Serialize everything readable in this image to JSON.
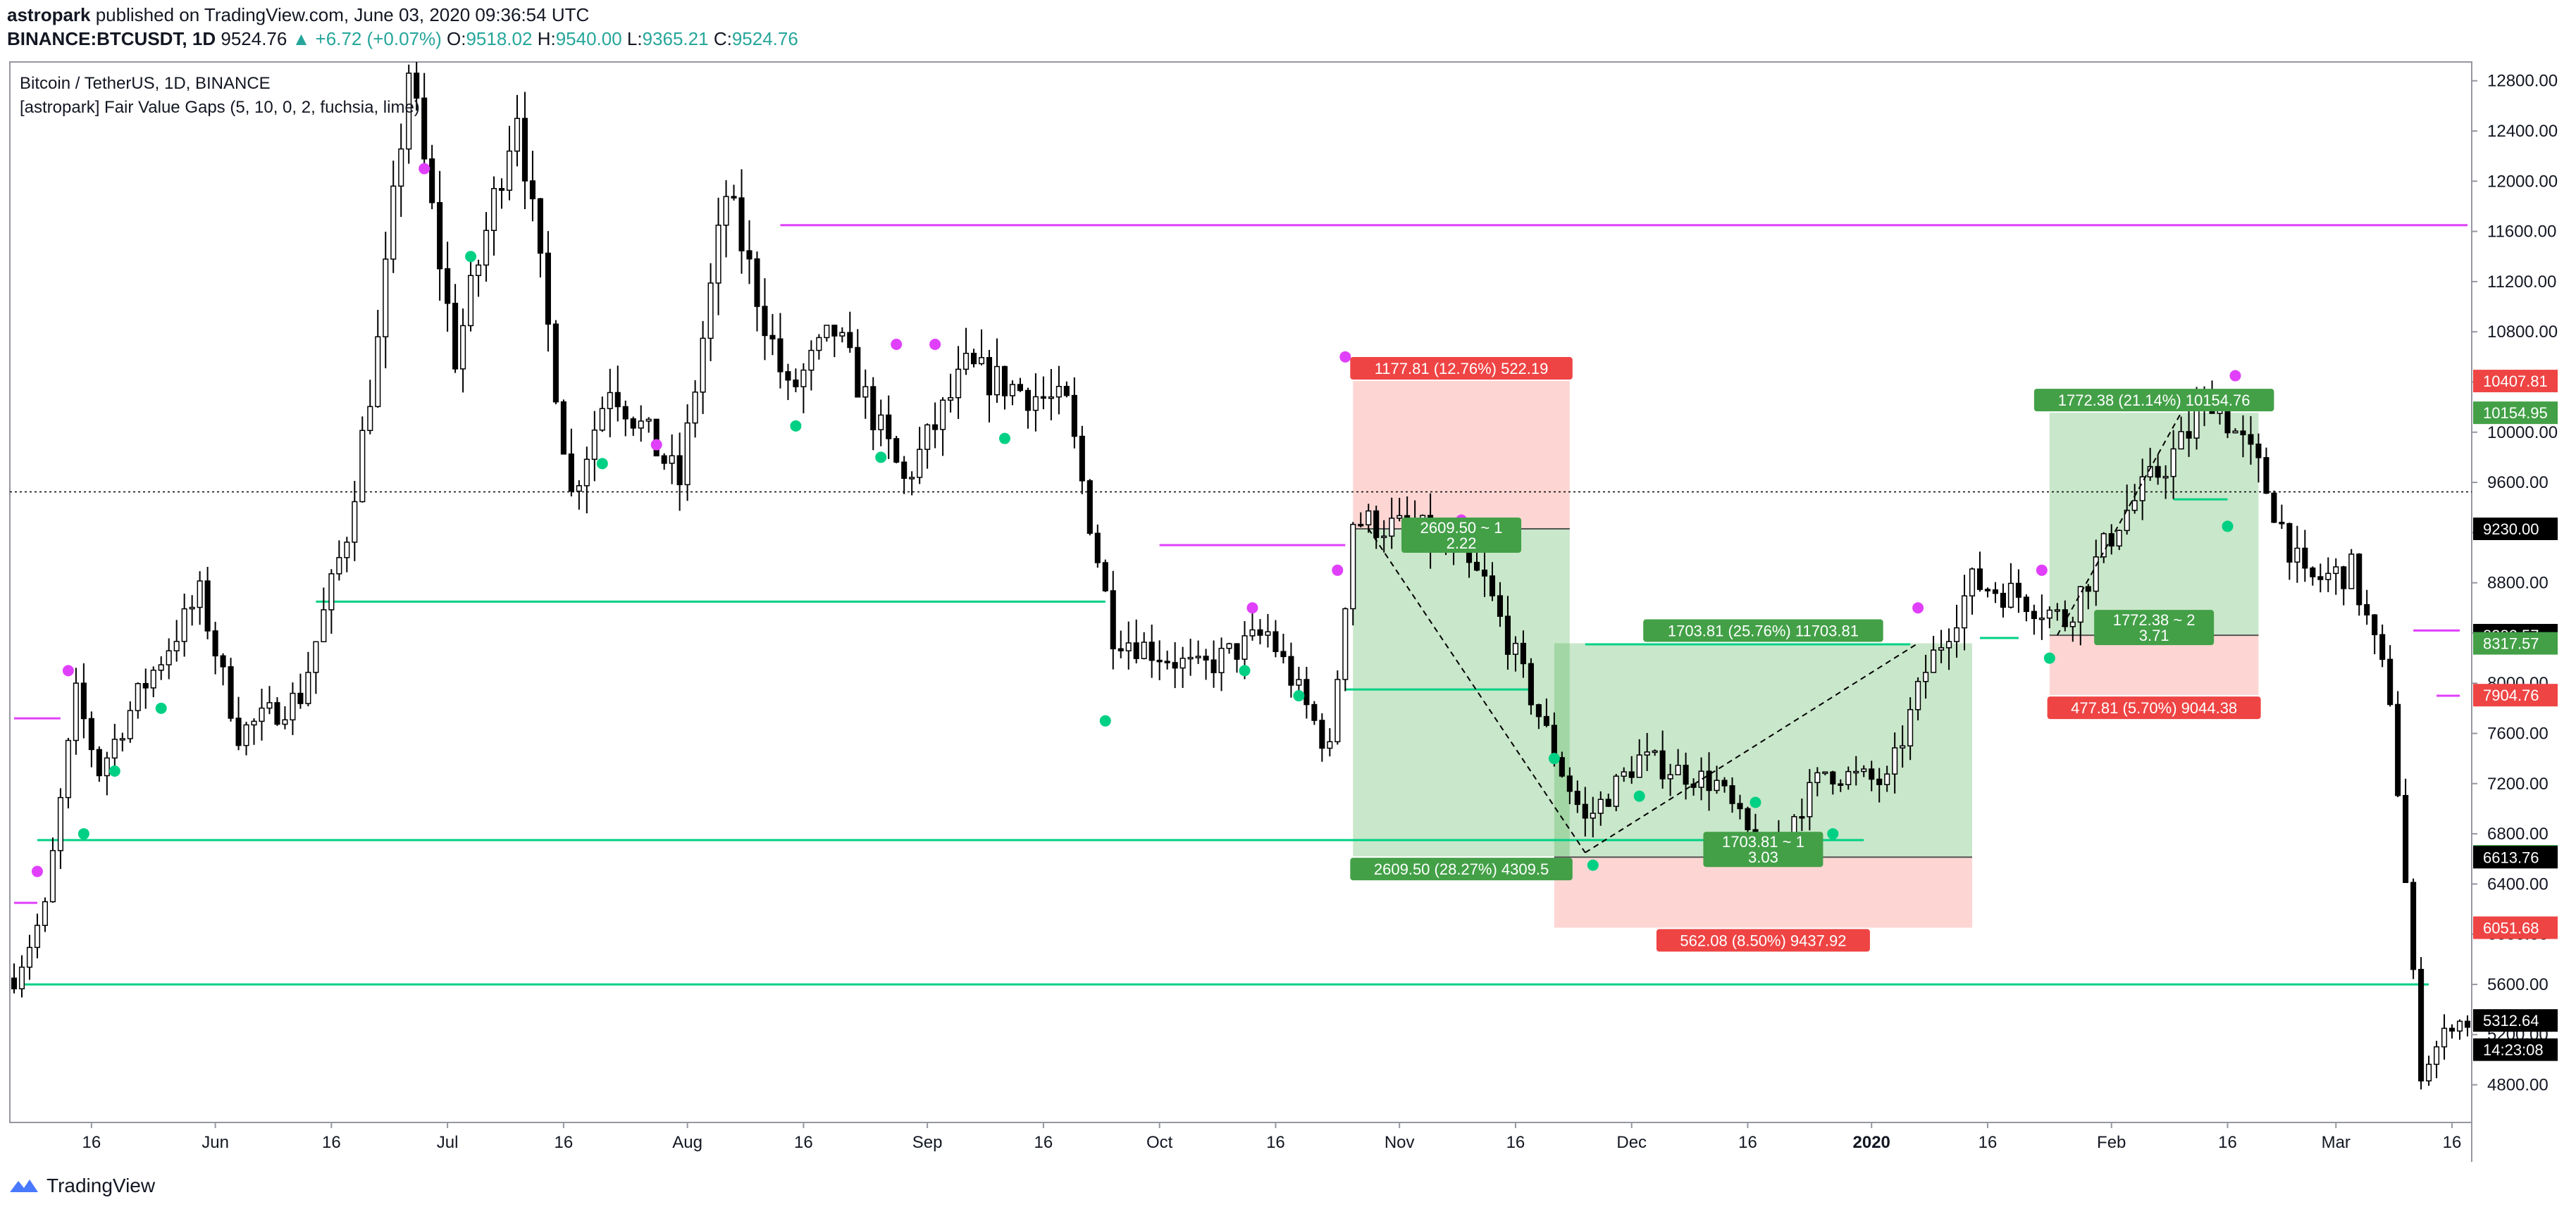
{
  "header": {
    "author": "astropark",
    "published_text": " published on TradingView.com, June 03, 2020 09:36:54 UTC",
    "symbol": "BINANCE:BTCUSDT, 1D",
    "last": "9524.76",
    "change": "▲ +6.72 (+0.07%)",
    "o_label": "O:",
    "o_val": "9518.02",
    "h_label": "H:",
    "h_val": "9540.00",
    "l_label": "L:",
    "l_val": "9365.21",
    "c_label": "C:",
    "c_val": "9524.76"
  },
  "footer": {
    "brand": "TradingView"
  },
  "colors": {
    "up": "#ffffff",
    "down": "#000000",
    "wick": "#000000",
    "bull_gap": "#00d084",
    "bear_gap": "#e040fb",
    "profit_zone": "#4caf50",
    "loss_zone": "#f44336",
    "label_green": "#43a047",
    "label_red": "#ef4444",
    "tag_dark": "#000000"
  },
  "chart_data": {
    "type": "candlestick",
    "title": "Bitcoin / TetherUS, 1D, BINANCE",
    "indicator": "[astropark] Fair Value Gaps (5, 10, 0, 2, fuchsia, lime)",
    "ylim": [
      4500,
      12950
    ],
    "y_ticks": [
      4800,
      5200,
      5600,
      6000,
      6400,
      6800,
      7200,
      7600,
      8000,
      8400,
      8800,
      9200,
      9600,
      10000,
      10400,
      10800,
      11200,
      11600,
      12000,
      12400,
      12800
    ],
    "y_tick_labels": [
      "4800.00",
      "5200.00",
      "5600.00",
      "6000.00",
      "6400.00",
      "6800.00",
      "7200.00",
      "7600.00",
      "8000.00",
      "8400.00",
      "8800.00",
      "9200.00",
      "9600.00",
      "10000.00",
      "10400.00",
      "10800.00",
      "11200.00",
      "11600.00",
      "12000.00",
      "12400.00",
      "12800.00"
    ],
    "x_range": [
      "2019-05-06",
      "2020-03-18"
    ],
    "x_ticks": [
      {
        "date": "2019-05-16",
        "label": "16"
      },
      {
        "date": "2019-06-01",
        "label": "Jun"
      },
      {
        "date": "2019-06-16",
        "label": "16"
      },
      {
        "date": "2019-07-01",
        "label": "Jul"
      },
      {
        "date": "2019-07-16",
        "label": "16"
      },
      {
        "date": "2019-08-01",
        "label": "Aug"
      },
      {
        "date": "2019-08-16",
        "label": "16"
      },
      {
        "date": "2019-09-01",
        "label": "Sep"
      },
      {
        "date": "2019-09-16",
        "label": "16"
      },
      {
        "date": "2019-10-01",
        "label": "Oct"
      },
      {
        "date": "2019-10-16",
        "label": "16"
      },
      {
        "date": "2019-11-01",
        "label": "Nov"
      },
      {
        "date": "2019-11-16",
        "label": "16"
      },
      {
        "date": "2019-12-01",
        "label": "Dec"
      },
      {
        "date": "2019-12-16",
        "label": "16"
      },
      {
        "date": "2020-01-01",
        "label": "2020",
        "bold": true
      },
      {
        "date": "2020-01-16",
        "label": "16"
      },
      {
        "date": "2020-02-01",
        "label": "Feb"
      },
      {
        "date": "2020-02-16",
        "label": "16"
      },
      {
        "date": "2020-03-01",
        "label": "Mar"
      },
      {
        "date": "2020-03-16",
        "label": "16"
      }
    ],
    "price_path": [
      [
        "2019-05-06",
        5650
      ],
      [
        "2019-05-10",
        6200
      ],
      [
        "2019-05-14",
        7900
      ],
      [
        "2019-05-17",
        7300
      ],
      [
        "2019-05-22",
        7900
      ],
      [
        "2019-05-30",
        8700
      ],
      [
        "2019-06-04",
        7600
      ],
      [
        "2019-06-12",
        7900
      ],
      [
        "2019-06-18",
        9200
      ],
      [
        "2019-06-22",
        10700
      ],
      [
        "2019-06-26",
        12900
      ],
      [
        "2019-07-02",
        10600
      ],
      [
        "2019-07-10",
        12600
      ],
      [
        "2019-07-17",
        9500
      ],
      [
        "2019-07-22",
        10400
      ],
      [
        "2019-07-31",
        9600
      ],
      [
        "2019-08-06",
        11900
      ],
      [
        "2019-08-14",
        10300
      ],
      [
        "2019-08-20",
        10800
      ],
      [
        "2019-08-29",
        9600
      ],
      [
        "2019-09-06",
        10500
      ],
      [
        "2019-09-19",
        10200
      ],
      [
        "2019-09-25",
        8400
      ],
      [
        "2019-10-06",
        8100
      ],
      [
        "2019-10-15",
        8400
      ],
      [
        "2019-10-23",
        7450
      ],
      [
        "2019-10-26",
        9300
      ],
      [
        "2019-11-04",
        9200
      ],
      [
        "2019-11-12",
        8800
      ],
      [
        "2019-11-22",
        7300
      ],
      [
        "2019-11-25",
        6900
      ],
      [
        "2019-12-02",
        7400
      ],
      [
        "2019-12-12",
        7200
      ],
      [
        "2019-12-18",
        6600
      ],
      [
        "2019-12-26",
        7300
      ],
      [
        "2020-01-03",
        7200
      ],
      [
        "2020-01-08",
        8100
      ],
      [
        "2020-01-14",
        8800
      ],
      [
        "2020-01-20",
        8700
      ],
      [
        "2020-01-26",
        8500
      ],
      [
        "2020-02-02",
        9300
      ],
      [
        "2020-02-10",
        9900
      ],
      [
        "2020-02-14",
        10300
      ],
      [
        "2020-02-20",
        9700
      ],
      [
        "2020-02-26",
        8800
      ],
      [
        "2020-03-03",
        8900
      ],
      [
        "2020-03-08",
        7900
      ],
      [
        "2020-03-12",
        4900
      ],
      [
        "2020-03-16",
        5300
      ],
      [
        "2020-03-18",
        5300
      ]
    ],
    "fvg_levels": [
      {
        "color": "bear",
        "price": 11650,
        "from": "2019-08-13",
        "to": "2020-03-18"
      },
      {
        "color": "bear",
        "price": 9100,
        "from": "2019-10-01",
        "to": "2019-10-25"
      },
      {
        "color": "bull",
        "price": 8650,
        "from": "2019-06-14",
        "to": "2019-09-24"
      },
      {
        "color": "bull",
        "price": 7950,
        "from": "2019-10-25",
        "to": "2019-11-18"
      },
      {
        "color": "bull",
        "price": 6750,
        "from": "2019-05-09",
        "to": "2019-12-31"
      },
      {
        "color": "bull",
        "price": 5600,
        "from": "2019-05-07",
        "to": "2020-03-13"
      },
      {
        "color": "bear",
        "price": 7720,
        "from": "2019-05-06",
        "to": "2019-05-12"
      },
      {
        "color": "bear",
        "price": 6250,
        "from": "2019-05-06",
        "to": "2019-05-09"
      },
      {
        "color": "bear",
        "price": 8420,
        "from": "2020-03-11",
        "to": "2020-03-17"
      },
      {
        "color": "bear",
        "price": 7900,
        "from": "2020-03-14",
        "to": "2020-03-17"
      },
      {
        "color": "bull",
        "price": 9465,
        "from": "2020-02-09",
        "to": "2020-02-16"
      },
      {
        "color": "bull",
        "price": 8360,
        "from": "2020-01-15",
        "to": "2020-01-20"
      },
      {
        "color": "bull",
        "price": 8310,
        "from": "2019-11-25",
        "to": "2020-01-06"
      }
    ],
    "markers": [
      {
        "type": "bear",
        "date": "2019-05-13",
        "price": 8100
      },
      {
        "type": "bear",
        "date": "2019-05-09",
        "price": 6500
      },
      {
        "type": "bull",
        "date": "2019-05-15",
        "price": 6800
      },
      {
        "type": "bull",
        "date": "2019-05-19",
        "price": 7300
      },
      {
        "type": "bull",
        "date": "2019-05-25",
        "price": 7800
      },
      {
        "type": "bear",
        "date": "2019-06-28",
        "price": 12100
      },
      {
        "type": "bull",
        "date": "2019-07-04",
        "price": 11400
      },
      {
        "type": "bull",
        "date": "2019-07-21",
        "price": 9750
      },
      {
        "type": "bear",
        "date": "2019-07-28",
        "price": 9900
      },
      {
        "type": "bull",
        "date": "2019-08-15",
        "price": 10050
      },
      {
        "type": "bear",
        "date": "2019-08-28",
        "price": 10700
      },
      {
        "type": "bull",
        "date": "2019-08-26",
        "price": 9800
      },
      {
        "type": "bear",
        "date": "2019-09-02",
        "price": 10700
      },
      {
        "type": "bull",
        "date": "2019-09-11",
        "price": 9950
      },
      {
        "type": "bull",
        "date": "2019-09-24",
        "price": 7700
      },
      {
        "type": "bear",
        "date": "2019-10-13",
        "price": 8600
      },
      {
        "type": "bull",
        "date": "2019-10-12",
        "price": 8100
      },
      {
        "type": "bull",
        "date": "2019-10-19",
        "price": 7900
      },
      {
        "type": "bear",
        "date": "2019-10-24",
        "price": 8900
      },
      {
        "type": "bear",
        "date": "2019-10-25",
        "price": 10600
      },
      {
        "type": "bear",
        "date": "2019-11-09",
        "price": 9300
      },
      {
        "type": "bull",
        "date": "2019-11-21",
        "price": 7400
      },
      {
        "type": "bull",
        "date": "2019-11-26",
        "price": 6550
      },
      {
        "type": "bull",
        "date": "2019-12-02",
        "price": 7100
      },
      {
        "type": "bull",
        "date": "2019-12-17",
        "price": 7050
      },
      {
        "type": "bull",
        "date": "2019-12-27",
        "price": 6800
      },
      {
        "type": "bear",
        "date": "2020-01-07",
        "price": 8600
      },
      {
        "type": "bear",
        "date": "2020-01-23",
        "price": 8900
      },
      {
        "type": "bull",
        "date": "2020-01-24",
        "price": 8200
      },
      {
        "type": "bull",
        "date": "2020-02-16",
        "price": 9250
      },
      {
        "type": "bear",
        "date": "2020-02-17",
        "price": 10450
      }
    ],
    "positions": [
      {
        "kind": "short",
        "from": "2019-10-26",
        "to": "2019-11-23",
        "entry": 9230,
        "stop": 10408,
        "target": 6620,
        "profit_label": "2609.50 (28.27%) 4309.5",
        "loss_label": "1177.81 (12.76%) 522.19",
        "ratio_label": "2609.50 ~ 1",
        "ratio_sub": "2.22"
      },
      {
        "kind": "long",
        "from": "2019-11-21",
        "to": "2020-01-14",
        "entry": 6614,
        "stop": 6052,
        "target": 8318,
        "profit_label": "1703.81 (25.76%) 11703.81",
        "loss_label": "562.08 (8.50%) 9437.92",
        "ratio_label": "1703.81 ~ 1",
        "ratio_sub": "3.03"
      },
      {
        "kind": "long",
        "from": "2020-01-24",
        "to": "2020-02-20",
        "entry": 8382,
        "stop": 7905,
        "target": 10155,
        "profit_label": "1772.38 (21.14%) 10154.76",
        "loss_label": "477.81 (5.70%) 9044.38",
        "ratio_label": "1772.38 ~ 2",
        "ratio_sub": "3.71"
      }
    ],
    "trend_lines": [
      [
        [
          "2019-10-28",
          9230
        ],
        [
          "2019-11-25",
          6650
        ]
      ],
      [
        [
          "2019-11-25",
          6650
        ],
        [
          "2020-01-07",
          8318
        ]
      ],
      [
        [
          "2020-01-25",
          8382
        ],
        [
          "2020-02-10",
          10155
        ]
      ]
    ],
    "current_price": 9524.76,
    "price_tags": [
      {
        "price": 10407.81,
        "text": "10407.81",
        "bg": "red"
      },
      {
        "price": 10154.95,
        "text": "10154.95",
        "bg": "green"
      },
      {
        "price": 9230.0,
        "text": "9230.00",
        "bg": "dark"
      },
      {
        "price": 8382.57,
        "text": "8382.57",
        "bg": "dark"
      },
      {
        "price": 8317.57,
        "text": "8317.57",
        "bg": "green"
      },
      {
        "price": 7904.76,
        "text": "7904.76",
        "bg": "red"
      },
      {
        "price": 6620.5,
        "text": "6620.50",
        "bg": "green"
      },
      {
        "price": 6613.76,
        "text": "6613.76",
        "bg": "dark"
      },
      {
        "price": 6051.68,
        "text": "6051.68",
        "bg": "red"
      },
      {
        "price": 5312.64,
        "text": "5312.64",
        "bg": "dark"
      },
      {
        "price": 5080,
        "text": "14:23:08",
        "bg": "dark"
      }
    ]
  }
}
